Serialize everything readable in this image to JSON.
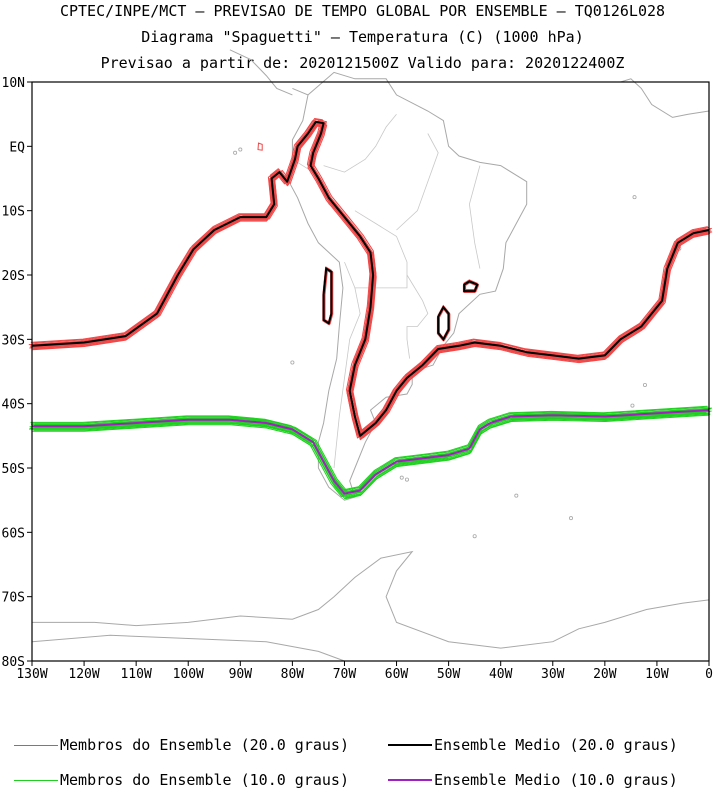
{
  "title": {
    "line1": "CPTEC/INPE/MCT — PREVISAO DE TEMPO GLOBAL POR ENSEMBLE — TQ0126L028",
    "line2": "Diagrama \"Spaguetti\" — Temperatura (C) (1000 hPa)",
    "line3": "Previsao a partir de: 2020121500Z  Valido para: 2020122400Z"
  },
  "map": {
    "lon_range": [
      -130,
      0
    ],
    "lat_range": [
      -80,
      10
    ],
    "lat_ticks": [
      {
        "value": 10,
        "label": "10N"
      },
      {
        "value": 0,
        "label": "EQ"
      },
      {
        "value": -10,
        "label": "10S"
      },
      {
        "value": -20,
        "label": "20S"
      },
      {
        "value": -30,
        "label": "30S"
      },
      {
        "value": -40,
        "label": "40S"
      },
      {
        "value": -50,
        "label": "50S"
      },
      {
        "value": -60,
        "label": "60S"
      },
      {
        "value": -70,
        "label": "70S"
      },
      {
        "value": -80,
        "label": "80S"
      }
    ],
    "lon_ticks": [
      {
        "value": -130,
        "label": "130W"
      },
      {
        "value": -120,
        "label": "120W"
      },
      {
        "value": -110,
        "label": "110W"
      },
      {
        "value": -100,
        "label": "100W"
      },
      {
        "value": -90,
        "label": "90W"
      },
      {
        "value": -80,
        "label": "80W"
      },
      {
        "value": -70,
        "label": "70W"
      },
      {
        "value": -60,
        "label": "60W"
      },
      {
        "value": -50,
        "label": "50W"
      },
      {
        "value": -40,
        "label": "40W"
      },
      {
        "value": -30,
        "label": "30W"
      },
      {
        "value": -20,
        "label": "20W"
      },
      {
        "value": -10,
        "label": "10W"
      },
      {
        "value": 0,
        "label": "0"
      }
    ],
    "colors": {
      "member20": "#f04848",
      "mean20": "#000000",
      "member10": "#20d020",
      "mean10": "#a020c0",
      "coast": "#a8a8a8"
    },
    "isotherm_20": [
      [
        -130,
        -31
      ],
      [
        -120,
        -30.5
      ],
      [
        -112,
        -29.5
      ],
      [
        -106,
        -26
      ],
      [
        -102,
        -20
      ],
      [
        -99,
        -16
      ],
      [
        -95,
        -13
      ],
      [
        -90,
        -11
      ],
      [
        -85,
        -11
      ],
      [
        -83.5,
        -9
      ],
      [
        -84,
        -5
      ],
      [
        -82.5,
        -4
      ],
      [
        -81,
        -5.5
      ],
      [
        -79.5,
        -2
      ],
      [
        -79,
        0
      ],
      [
        -77,
        2
      ],
      [
        -75.5,
        3.8
      ],
      [
        -74,
        3.6
      ],
      [
        -74.5,
        2
      ],
      [
        -76,
        -1
      ],
      [
        -76.5,
        -3
      ],
      [
        -75,
        -5
      ],
      [
        -73,
        -8
      ],
      [
        -70,
        -11
      ],
      [
        -67,
        -14
      ],
      [
        -65,
        -16.5
      ],
      [
        -64.5,
        -20
      ],
      [
        -65,
        -25
      ],
      [
        -66,
        -30
      ],
      [
        -68,
        -34
      ],
      [
        -69,
        -38
      ],
      [
        -68,
        -42
      ],
      [
        -67,
        -45
      ],
      [
        -64,
        -43
      ],
      [
        -62,
        -41
      ],
      [
        -60,
        -38
      ],
      [
        -58,
        -36
      ],
      [
        -55,
        -34
      ],
      [
        -52,
        -31.5
      ],
      [
        -48,
        -31
      ],
      [
        -45,
        -30.5
      ],
      [
        -40,
        -31
      ],
      [
        -35,
        -32
      ],
      [
        -30,
        -32.5
      ],
      [
        -25,
        -33
      ],
      [
        -20,
        -32.5
      ],
      [
        -17,
        -30
      ],
      [
        -13,
        -28
      ],
      [
        -9,
        -24
      ],
      [
        -8,
        -19
      ],
      [
        -6,
        -15
      ],
      [
        -3,
        -13.5
      ],
      [
        0,
        -13
      ]
    ],
    "isotherm_20_islands": [
      [
        [
          -73.5,
          -19
        ],
        [
          -72.5,
          -19.5
        ],
        [
          -72.5,
          -23
        ],
        [
          -72.5,
          -26
        ],
        [
          -73,
          -27.5
        ],
        [
          -74,
          -27
        ],
        [
          -74,
          -23
        ],
        [
          -73.5,
          -19
        ]
      ],
      [
        [
          -51,
          -25
        ],
        [
          -50,
          -26
        ],
        [
          -50,
          -28.5
        ],
        [
          -51,
          -30
        ],
        [
          -52,
          -29
        ],
        [
          -52,
          -26.5
        ],
        [
          -51,
          -25
        ]
      ],
      [
        [
          -46,
          -21
        ],
        [
          -44.5,
          -21.5
        ],
        [
          -45,
          -22.5
        ],
        [
          -47,
          -22.5
        ],
        [
          -47,
          -21.5
        ],
        [
          -46,
          -21
        ]
      ]
    ],
    "isotherm_10": [
      [
        -130,
        -43.5
      ],
      [
        -120,
        -43.5
      ],
      [
        -110,
        -43
      ],
      [
        -100,
        -42.5
      ],
      [
        -92,
        -42.5
      ],
      [
        -85,
        -43
      ],
      [
        -80,
        -44
      ],
      [
        -76,
        -46
      ],
      [
        -74,
        -49
      ],
      [
        -72,
        -52
      ],
      [
        -70,
        -54
      ],
      [
        -67,
        -53.5
      ],
      [
        -64,
        -51
      ],
      [
        -60,
        -49
      ],
      [
        -55,
        -48.5
      ],
      [
        -50,
        -48
      ],
      [
        -46,
        -47
      ],
      [
        -44,
        -44
      ],
      [
        -42,
        -43
      ],
      [
        -38,
        -42
      ],
      [
        -30,
        -41.8
      ],
      [
        -20,
        -42
      ],
      [
        -10,
        -41.5
      ],
      [
        0,
        -41
      ]
    ],
    "islands": [
      [
        [
          -86.5,
          0.5
        ],
        [
          -85.8,
          0.3
        ],
        [
          -85.8,
          -0.6
        ],
        [
          -86.6,
          -0.5
        ],
        [
          -86.5,
          0.5
        ]
      ]
    ]
  },
  "legend": {
    "members20": "Membros do Ensemble (20.0 graus)",
    "mean20": "Ensemble Medio (20.0 graus)",
    "members10": "Membros do Ensemble (10.0 graus)",
    "mean10": "Ensemble Medio (10.0 graus)"
  }
}
